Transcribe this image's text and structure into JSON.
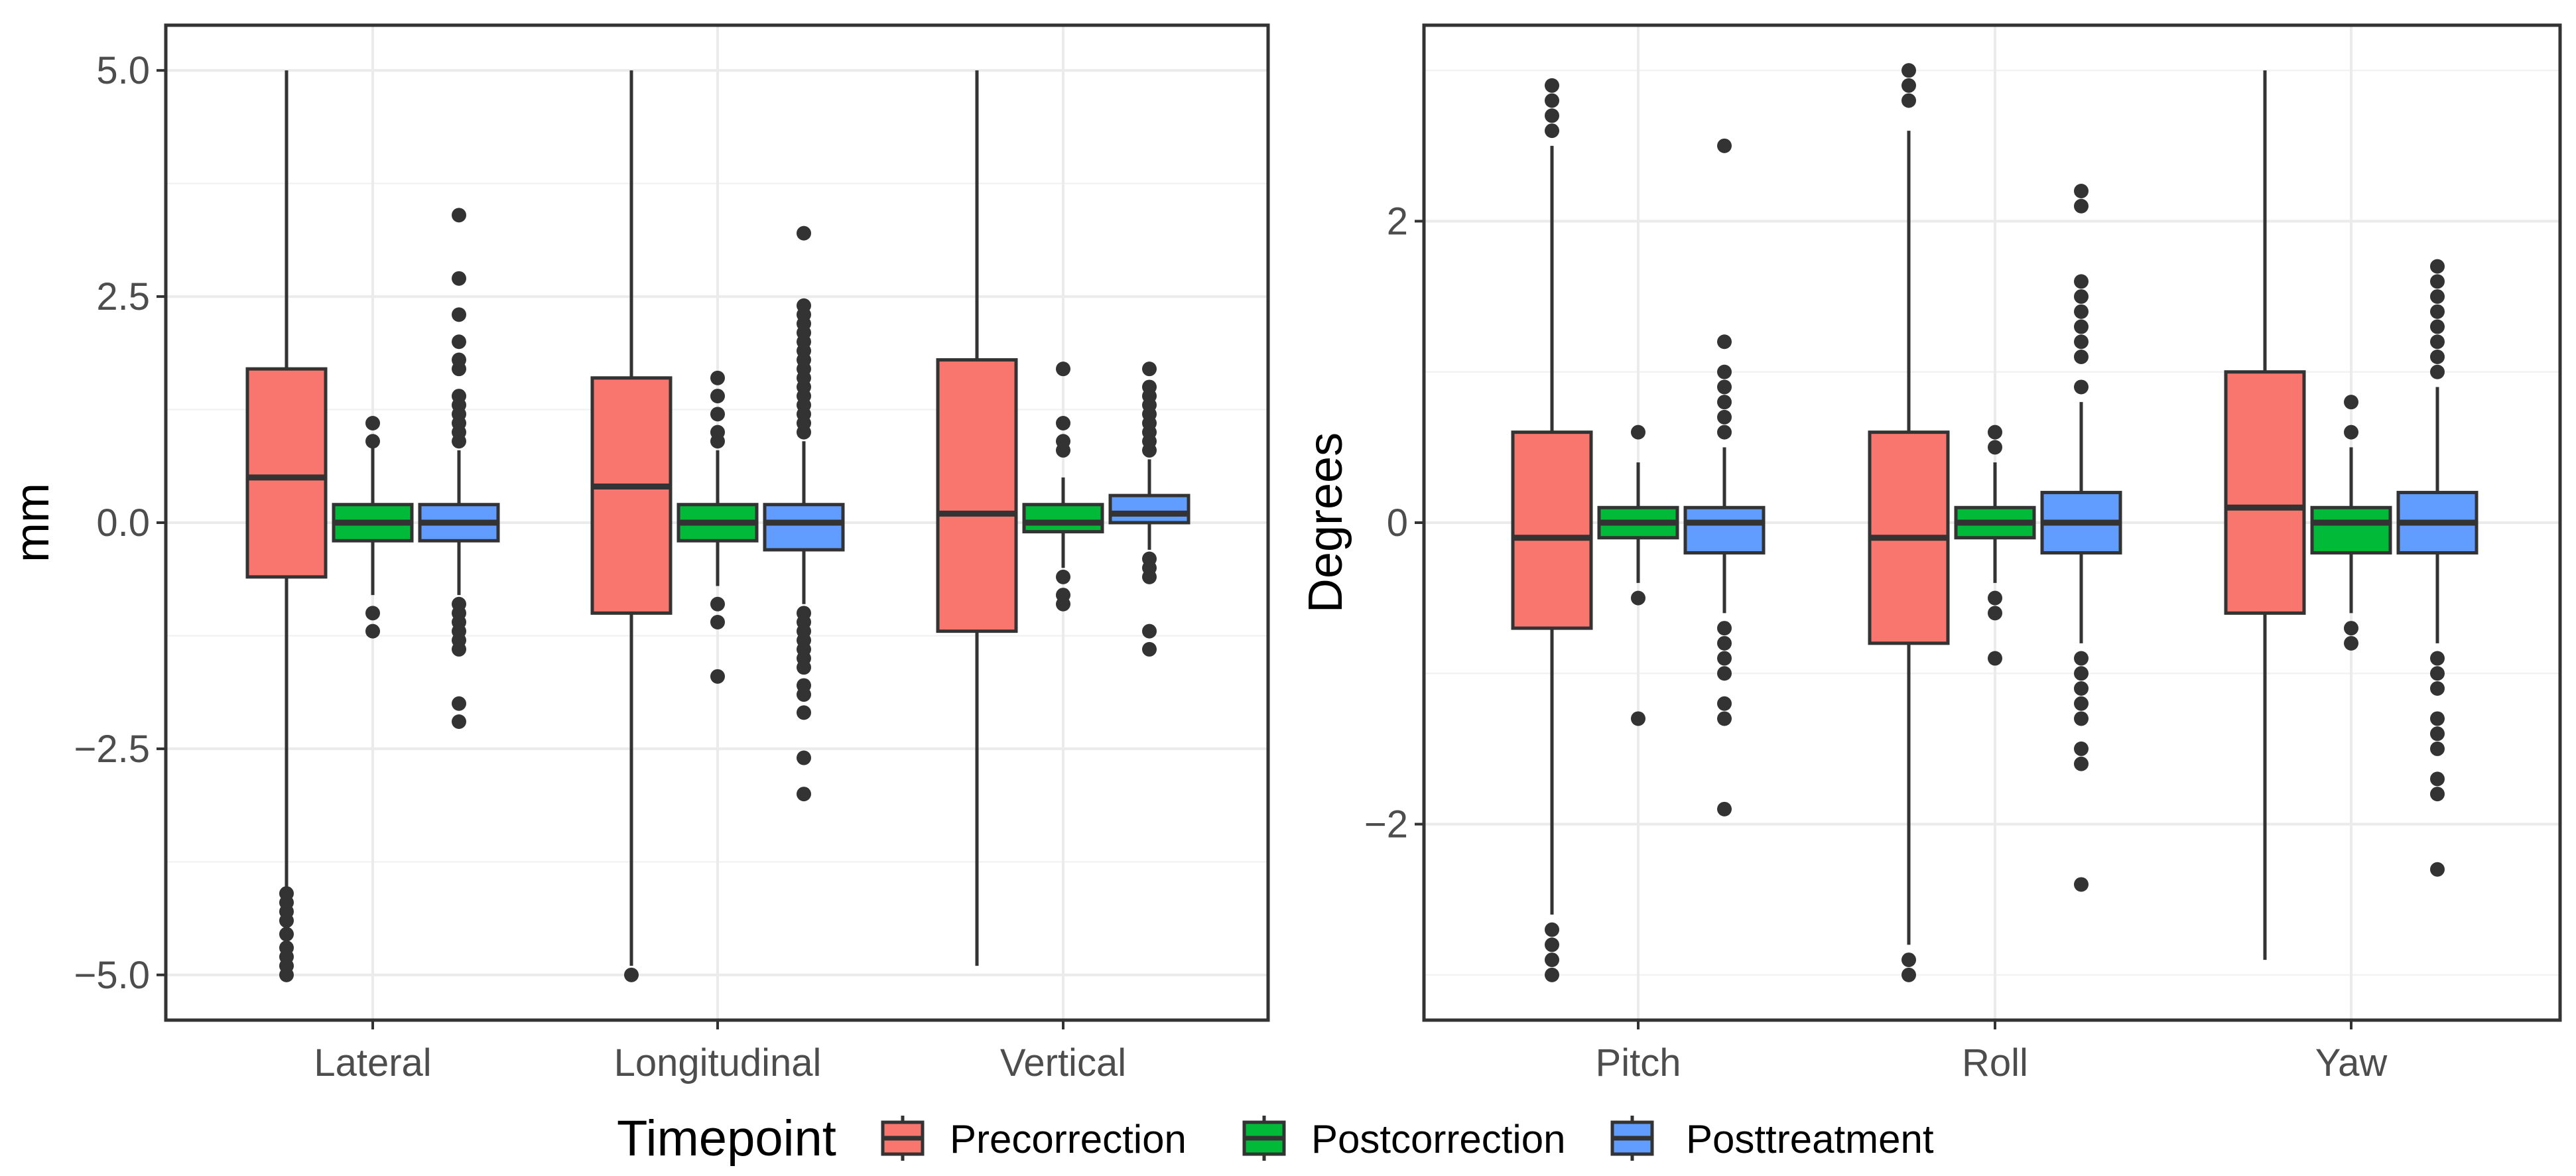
{
  "chart_data": [
    {
      "type": "boxplot",
      "panel": "left",
      "ylabel": "mm",
      "xlabel": "",
      "ylim": [
        -5.5,
        5.5
      ],
      "yticks": [
        -5.0,
        -2.5,
        0.0,
        2.5,
        5.0
      ],
      "ytick_labels": [
        "−5.0",
        "−2.5",
        "0.0",
        "2.5",
        "5.0"
      ],
      "grid": true,
      "categories": [
        "Lateral",
        "Longitudinal",
        "Vertical"
      ],
      "series": [
        {
          "name": "Precorrection",
          "boxes": [
            {
              "category": "Lateral",
              "q1": -0.6,
              "median": 0.5,
              "q3": 1.7,
              "whisker_low": -4.1,
              "whisker_high": 5.0,
              "outliers": [
                -4.1,
                -4.2,
                -4.3,
                -4.4,
                -4.55,
                -4.7,
                -4.8,
                -4.9,
                -5.0
              ]
            },
            {
              "category": "Longitudinal",
              "q1": -1.0,
              "median": 0.4,
              "q3": 1.6,
              "whisker_low": -4.9,
              "whisker_high": 5.0,
              "outliers": [
                -5.0
              ]
            },
            {
              "category": "Vertical",
              "q1": -1.2,
              "median": 0.1,
              "q3": 1.8,
              "whisker_low": -4.9,
              "whisker_high": 5.0,
              "outliers": []
            }
          ]
        },
        {
          "name": "Postcorrection",
          "boxes": [
            {
              "category": "Lateral",
              "q1": -0.2,
              "median": 0.0,
              "q3": 0.2,
              "whisker_low": -0.8,
              "whisker_high": 0.9,
              "outliers": [
                0.9,
                1.1,
                -1.0,
                -1.2
              ]
            },
            {
              "category": "Longitudinal",
              "q1": -0.2,
              "median": 0.0,
              "q3": 0.2,
              "whisker_low": -0.7,
              "whisker_high": 0.8,
              "outliers": [
                0.9,
                1.0,
                1.2,
                1.4,
                1.6,
                -0.9,
                -1.1,
                -1.7
              ]
            },
            {
              "category": "Vertical",
              "q1": -0.1,
              "median": 0.0,
              "q3": 0.2,
              "whisker_low": -0.5,
              "whisker_high": 0.5,
              "outliers": [
                0.8,
                0.9,
                1.1,
                1.7,
                -0.6,
                -0.8,
                -0.9
              ]
            }
          ]
        },
        {
          "name": "Posttreatment",
          "boxes": [
            {
              "category": "Lateral",
              "q1": -0.2,
              "median": 0.0,
              "q3": 0.2,
              "whisker_low": -0.8,
              "whisker_high": 0.8,
              "outliers": [
                0.9,
                1.0,
                1.1,
                1.2,
                1.3,
                1.4,
                1.7,
                1.8,
                2.0,
                2.3,
                2.7,
                3.4,
                -0.9,
                -1.0,
                -1.1,
                -1.2,
                -1.3,
                -1.4,
                -2.0,
                -2.2
              ]
            },
            {
              "category": "Longitudinal",
              "q1": -0.3,
              "median": 0.0,
              "q3": 0.2,
              "whisker_low": -0.9,
              "whisker_high": 0.9,
              "outliers": [
                1.0,
                1.1,
                1.2,
                1.3,
                1.4,
                1.5,
                1.6,
                1.7,
                1.8,
                1.9,
                2.0,
                2.1,
                2.2,
                2.3,
                2.4,
                3.2,
                -1.0,
                -1.1,
                -1.2,
                -1.3,
                -1.4,
                -1.5,
                -1.6,
                -1.8,
                -1.9,
                -2.1,
                -2.6,
                -3.0
              ]
            },
            {
              "category": "Vertical",
              "q1": 0.0,
              "median": 0.1,
              "q3": 0.3,
              "whisker_low": -0.3,
              "whisker_high": 0.7,
              "outliers": [
                0.8,
                0.9,
                1.0,
                1.1,
                1.2,
                1.3,
                1.4,
                1.5,
                1.7,
                -0.4,
                -0.5,
                -0.6,
                -1.2,
                -1.4
              ]
            }
          ]
        }
      ]
    },
    {
      "type": "boxplot",
      "panel": "right",
      "ylabel": "Degrees",
      "xlabel": "",
      "ylim": [
        -3.3,
        3.3
      ],
      "yticks": [
        -2,
        0,
        2
      ],
      "ytick_labels": [
        "−2",
        "0",
        "2"
      ],
      "grid": true,
      "categories": [
        "Pitch",
        "Roll",
        "Yaw"
      ],
      "series": [
        {
          "name": "Precorrection",
          "boxes": [
            {
              "category": "Pitch",
              "q1": -0.7,
              "median": -0.1,
              "q3": 0.6,
              "whisker_low": -2.6,
              "whisker_high": 2.5,
              "outliers": [
                2.6,
                2.7,
                2.8,
                2.9,
                -2.7,
                -2.8,
                -2.9,
                -3.0
              ]
            },
            {
              "category": "Roll",
              "q1": -0.8,
              "median": -0.1,
              "q3": 0.6,
              "whisker_low": -2.8,
              "whisker_high": 2.6,
              "outliers": [
                2.8,
                2.9,
                3.0,
                -2.9,
                -3.0
              ]
            },
            {
              "category": "Yaw",
              "q1": -0.6,
              "median": 0.1,
              "q3": 1.0,
              "whisker_low": -2.9,
              "whisker_high": 3.0,
              "outliers": []
            }
          ]
        },
        {
          "name": "Postcorrection",
          "boxes": [
            {
              "category": "Pitch",
              "q1": -0.1,
              "median": 0.0,
              "q3": 0.1,
              "whisker_low": -0.4,
              "whisker_high": 0.4,
              "outliers": [
                0.6,
                -0.5,
                -1.3
              ]
            },
            {
              "category": "Roll",
              "q1": -0.1,
              "median": 0.0,
              "q3": 0.1,
              "whisker_low": -0.4,
              "whisker_high": 0.4,
              "outliers": [
                0.5,
                0.6,
                -0.5,
                -0.6,
                -0.9
              ]
            },
            {
              "category": "Yaw",
              "q1": -0.2,
              "median": 0.0,
              "q3": 0.1,
              "whisker_low": -0.6,
              "whisker_high": 0.5,
              "outliers": [
                0.6,
                0.8,
                -0.7,
                -0.8
              ]
            }
          ]
        },
        {
          "name": "Posttreatment",
          "boxes": [
            {
              "category": "Pitch",
              "q1": -0.2,
              "median": 0.0,
              "q3": 0.1,
              "whisker_low": -0.6,
              "whisker_high": 0.5,
              "outliers": [
                0.6,
                0.7,
                0.8,
                0.9,
                1.0,
                1.2,
                2.5,
                -0.7,
                -0.8,
                -0.9,
                -1.0,
                -1.2,
                -1.3,
                -1.9
              ]
            },
            {
              "category": "Roll",
              "q1": -0.2,
              "median": 0.0,
              "q3": 0.2,
              "whisker_low": -0.8,
              "whisker_high": 0.8,
              "outliers": [
                0.9,
                1.1,
                1.2,
                1.3,
                1.4,
                1.5,
                1.6,
                2.1,
                2.2,
                -0.9,
                -1.0,
                -1.1,
                -1.2,
                -1.3,
                -1.5,
                -1.6,
                -2.4
              ]
            },
            {
              "category": "Yaw",
              "q1": -0.2,
              "median": 0.0,
              "q3": 0.2,
              "whisker_low": -0.8,
              "whisker_high": 0.9,
              "outliers": [
                1.0,
                1.1,
                1.2,
                1.3,
                1.4,
                1.5,
                1.6,
                1.7,
                -0.9,
                -1.0,
                -1.1,
                -1.3,
                -1.4,
                -1.5,
                -1.7,
                -1.8,
                -2.3
              ]
            }
          ]
        }
      ]
    }
  ],
  "legend": {
    "title": "Timepoint",
    "position": "bottom",
    "items": [
      {
        "label": "Precorrection",
        "color": "#F8766D"
      },
      {
        "label": "Postcorrection",
        "color": "#00BA38"
      },
      {
        "label": "Posttreatment",
        "color": "#619CFF"
      }
    ]
  }
}
